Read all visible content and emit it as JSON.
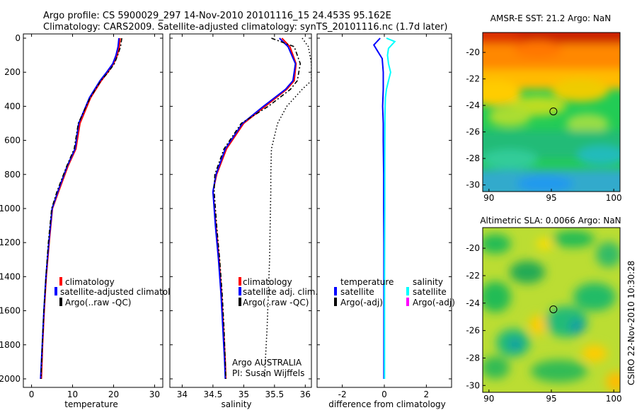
{
  "header": {
    "line1": "Argo profile: CS 5900029_297 14-Nov-2010 20101116_15 24.453S 95.162E",
    "line2": "Climatology: CARS2009. Satellite-adjusted climatology: synTS_20101116.nc (1.7d later)"
  },
  "side_label": "CSIRO 22-Nov-2010 10:30:28",
  "colors": {
    "climatology": "#ff0000",
    "satellite": "#0000ff",
    "argo": "#000000",
    "sal_satellite": "#00ffff",
    "sal_argo": "#ff00ff"
  },
  "chart_data": [
    {
      "id": "temperature",
      "type": "line",
      "xlabel": "temperature",
      "xlim": [
        -2,
        32
      ],
      "ylim": [
        0,
        2050
      ],
      "y_reversed": true,
      "xticks": [
        0,
        10,
        20,
        30
      ],
      "yticks": [
        0,
        200,
        400,
        600,
        800,
        1000,
        1200,
        1400,
        1600,
        1800,
        2000
      ],
      "legend": [
        "climatology",
        "satellite-adjusted climatology",
        "Argo(..raw -QC)"
      ],
      "legend_placement": "lower-right",
      "series": [
        {
          "name": "climatology",
          "color": "#ff0000",
          "style": "solid",
          "x": [
            21.6,
            21.4,
            20.9,
            20.0,
            18.6,
            17.0,
            14.4,
            11.8,
            10.8,
            8.9,
            6.6,
            5.1,
            4.3,
            3.6,
            3.1,
            2.7,
            2.4
          ],
          "y": [
            0,
            50,
            100,
            150,
            200,
            250,
            350,
            500,
            650,
            750,
            900,
            1000,
            1200,
            1400,
            1600,
            1800,
            2000
          ]
        },
        {
          "name": "satellite-adjusted climatology",
          "color": "#0000ff",
          "style": "solid",
          "x": [
            21.3,
            21.1,
            20.6,
            19.8,
            18.3,
            16.7,
            14.1,
            11.5,
            10.6,
            8.7,
            6.4,
            5.0,
            4.2,
            3.5,
            3.0,
            2.6,
            2.2
          ],
          "y": [
            0,
            50,
            100,
            150,
            200,
            250,
            350,
            500,
            650,
            750,
            900,
            1000,
            1200,
            1400,
            1600,
            1800,
            2000
          ]
        },
        {
          "name": "Argo(..raw -QC)",
          "color": "#000000",
          "style": "dashdot",
          "x": [
            22.0,
            21.7,
            21.0,
            20.2,
            18.7,
            16.9,
            14.3,
            11.4,
            10.4,
            8.6,
            6.2,
            4.9,
            4.1,
            3.5,
            3.0,
            2.6,
            2.3
          ],
          "y": [
            0,
            50,
            100,
            150,
            200,
            250,
            350,
            500,
            650,
            750,
            900,
            1000,
            1200,
            1400,
            1600,
            1800,
            2000
          ]
        }
      ]
    },
    {
      "id": "salinity",
      "type": "line",
      "xlabel": "salinity",
      "xlim": [
        33.8,
        36.1
      ],
      "ylim": [
        0,
        2050
      ],
      "y_reversed": true,
      "xticks": [
        34,
        34.5,
        35,
        35.5,
        36
      ],
      "yticks": [
        0,
        200,
        400,
        600,
        800,
        1000,
        1200,
        1400,
        1600,
        1800,
        2000
      ],
      "legend": [
        "climatology",
        "satellite adj. clim.",
        "Argo(..raw -QC)"
      ],
      "legend_placement": "lower-right",
      "annotations": [
        "Argo AUSTRALIA",
        "PI: Susan Wijffels"
      ],
      "series": [
        {
          "name": "climatology",
          "color": "#ff0000",
          "style": "solid",
          "x": [
            35.62,
            35.75,
            35.85,
            35.82,
            35.7,
            35.35,
            35.0,
            34.72,
            34.56,
            34.5,
            34.55,
            34.6,
            34.64,
            34.67,
            34.7,
            34.71
          ],
          "y": [
            0,
            50,
            150,
            250,
            300,
            400,
            500,
            650,
            800,
            900,
            1100,
            1300,
            1500,
            1700,
            1900,
            2000
          ]
        },
        {
          "name": "satellite adj. clim.",
          "color": "#0000ff",
          "style": "solid",
          "x": [
            35.58,
            35.72,
            35.84,
            35.8,
            35.68,
            35.32,
            34.98,
            34.7,
            34.55,
            34.5,
            34.54,
            34.59,
            34.63,
            34.66,
            34.69,
            34.7
          ],
          "y": [
            0,
            50,
            150,
            250,
            300,
            400,
            500,
            650,
            800,
            900,
            1100,
            1300,
            1500,
            1700,
            1900,
            2000
          ]
        },
        {
          "name": "Argo(..raw -QC)",
          "color": "#000000",
          "style": "dashdot",
          "x": [
            35.45,
            35.82,
            35.92,
            35.87,
            35.76,
            35.4,
            34.96,
            34.68,
            34.53,
            34.52,
            34.56,
            34.61,
            34.65,
            34.68,
            34.7,
            34.71
          ],
          "y": [
            0,
            50,
            150,
            250,
            300,
            400,
            500,
            650,
            800,
            900,
            1100,
            1300,
            1500,
            1700,
            1900,
            2000
          ]
        },
        {
          "name": "",
          "color": "#000000",
          "style": "dotted",
          "x": [
            35.95,
            36.05,
            36.1,
            36.1,
            35.95,
            35.7,
            35.55,
            35.45,
            35.44,
            35.44,
            35.43,
            35.42,
            35.4,
            35.38,
            35.35,
            35.34
          ],
          "y": [
            0,
            50,
            150,
            250,
            300,
            400,
            500,
            650,
            800,
            900,
            1100,
            1300,
            1500,
            1700,
            1900,
            2000
          ]
        }
      ]
    },
    {
      "id": "difference",
      "type": "line",
      "xlabel": "difference from climatology",
      "xlim": [
        -3.2,
        3.2
      ],
      "ylim": [
        0,
        2050
      ],
      "y_reversed": true,
      "xticks": [
        -2,
        0,
        2
      ],
      "yticks": [
        0,
        200,
        400,
        600,
        800,
        1000,
        1200,
        1400,
        1600,
        1800,
        2000
      ],
      "legend_groups": [
        {
          "title": "temperature",
          "entries": [
            "satellite",
            "Argo(-adj)"
          ]
        },
        {
          "title": "salinity",
          "entries": [
            "satellite",
            "Argo(-adj)"
          ]
        }
      ],
      "legend_placement": "lower",
      "series": [
        {
          "name": "temperature satellite",
          "color": "#0000ff",
          "style": "solid",
          "x": [
            -0.2,
            -0.5,
            -0.3,
            -0.1,
            -0.05,
            -0.05,
            -0.08,
            -0.05,
            -0.05,
            -0.03,
            -0.03,
            -0.02,
            -0.02,
            -0.02,
            -0.02
          ],
          "y": [
            0,
            40,
            80,
            120,
            200,
            300,
            400,
            500,
            600,
            800,
            1000,
            1200,
            1400,
            1700,
            2000
          ]
        },
        {
          "name": "salinity satellite",
          "color": "#00ffff",
          "style": "solid",
          "x": [
            0.1,
            0.5,
            0.2,
            0.15,
            0.2,
            0.3,
            0.2,
            0.1,
            0.05,
            0.03,
            0.02,
            0.02,
            0.01,
            0.01,
            0.01
          ],
          "y": [
            0,
            20,
            60,
            100,
            150,
            200,
            250,
            300,
            350,
            450,
            700,
            1000,
            1400,
            1700,
            2000
          ]
        }
      ]
    }
  ],
  "maps": [
    {
      "title": "AMSR-E SST: 21.2 Argo: NaN",
      "xlim": [
        89.5,
        100.5
      ],
      "ylim": [
        -30.5,
        -18.5
      ],
      "xticks": [
        90,
        95,
        100
      ],
      "yticks": [
        -20,
        -22,
        -24,
        -26,
        -28,
        -30
      ],
      "marker": {
        "lon": 95.162,
        "lat": -24.453
      },
      "palette": "sst"
    },
    {
      "title": "Altimetric SLA: 0.0066 Argo: NaN",
      "xlim": [
        89.5,
        100.5
      ],
      "ylim": [
        -30.5,
        -18.5
      ],
      "xticks": [
        90,
        95,
        100
      ],
      "yticks": [
        -20,
        -22,
        -24,
        -26,
        -28,
        -30
      ],
      "marker": {
        "lon": 95.162,
        "lat": -24.453
      },
      "palette": "sla"
    }
  ]
}
